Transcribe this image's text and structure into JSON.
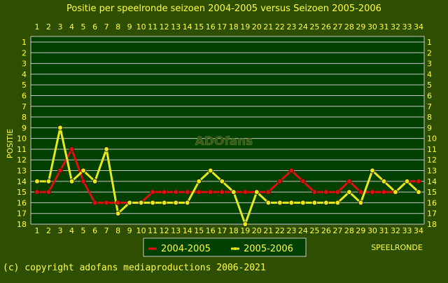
{
  "footer": {
    "copyright": "(c) copyright adofans mediaproductions 2006-2021"
  },
  "watermark": "ADOfans",
  "colors": {
    "background": "#2f4f00",
    "plot_background": "#004000",
    "grid": "#c8c8c8",
    "text": "#ffff40",
    "series_2004": "#dd1010",
    "series_2005": "#e8e820",
    "legend_border": "#c8c8c8"
  },
  "chart_data": {
    "type": "line",
    "title": "Positie per speelronde seizoen 2004-2005 versus Seizoen 2005-2006",
    "xlabel": "SPEELRONDE",
    "ylabel": "POSITIE",
    "x": [
      1,
      2,
      3,
      4,
      5,
      6,
      7,
      8,
      9,
      10,
      11,
      12,
      13,
      14,
      15,
      16,
      17,
      18,
      19,
      20,
      21,
      22,
      23,
      24,
      25,
      26,
      27,
      28,
      29,
      30,
      31,
      32,
      33,
      34
    ],
    "xlim": [
      1,
      34
    ],
    "ylim": [
      1,
      18
    ],
    "y_inverted": true,
    "grid": true,
    "legend_position": "bottom-center",
    "series": [
      {
        "name": "2004-2005",
        "color": "#dd1010",
        "values": [
          15,
          15,
          13,
          11,
          14,
          16,
          16,
          16,
          16,
          16,
          15,
          15,
          15,
          15,
          15,
          15,
          15,
          15,
          15,
          15,
          15,
          14,
          13,
          14,
          15,
          15,
          15,
          14,
          15,
          15,
          15,
          15,
          14,
          14
        ]
      },
      {
        "name": "2005-2006",
        "color": "#e8e820",
        "values": [
          14,
          14,
          9,
          14,
          13,
          14,
          11,
          17,
          16,
          16,
          16,
          16,
          16,
          16,
          14,
          13,
          14,
          15,
          18,
          15,
          16,
          16,
          16,
          16,
          16,
          16,
          16,
          15,
          16,
          13,
          14,
          15,
          14,
          15
        ]
      }
    ]
  }
}
